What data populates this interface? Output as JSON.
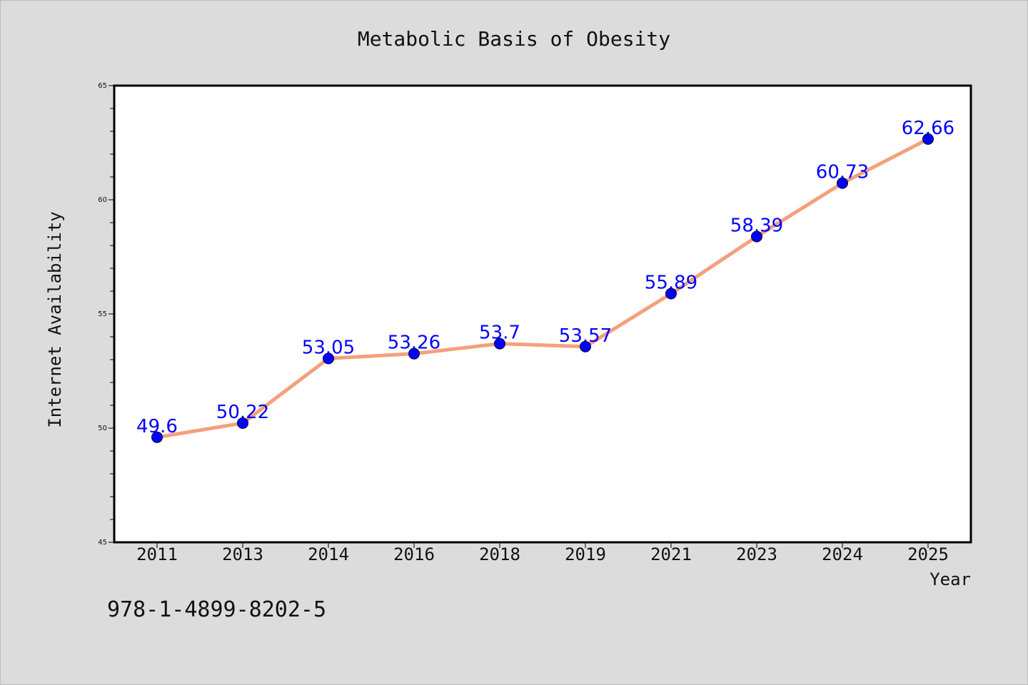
{
  "chart_data": {
    "type": "line",
    "title": "Metabolic Basis of Obesity",
    "xlabel": "Year",
    "ylabel": "Internet Availability",
    "categories": [
      "2011",
      "2013",
      "2014",
      "2016",
      "2018",
      "2019",
      "2021",
      "2023",
      "2024",
      "2025"
    ],
    "series": [
      {
        "values": [
          49.6,
          50.22,
          53.05,
          53.26,
          53.7,
          53.57,
          55.89,
          58.39,
          60.73,
          62.66
        ]
      }
    ],
    "data_labels": [
      "49.6",
      "50.22",
      "53.05",
      "53.26",
      "53.7",
      "53.57",
      "55.89",
      "58.39",
      "60.73",
      "62.66"
    ],
    "ylim": [
      45,
      65
    ],
    "y_ticks": [
      "45",
      "50",
      "55",
      "60",
      "65"
    ],
    "grid": false,
    "legend": "none",
    "colors": {
      "line": "#f4a07c",
      "marker": "#0000ff",
      "data_label": "#0000ff",
      "background": "#dcdcdc",
      "plot_background": "#ffffff"
    }
  },
  "footer": {
    "isbn": "978-1-4899-8202-5"
  }
}
